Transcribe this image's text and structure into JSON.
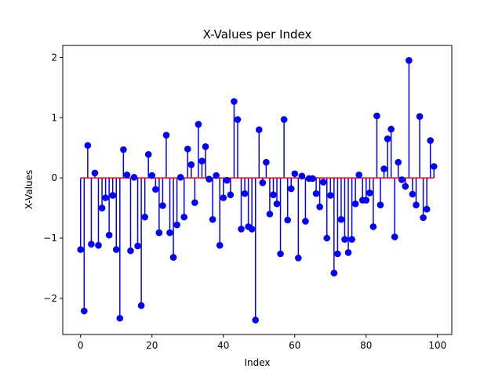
{
  "chart_data": {
    "type": "stem",
    "title": "X-Values per Index",
    "xlabel": "Index",
    "ylabel": "X-Values",
    "xlim": [
      -5,
      104
    ],
    "ylim": [
      -2.6,
      2.2
    ],
    "xticks": [
      0,
      20,
      40,
      60,
      80,
      100
    ],
    "xtick_labels": [
      "0",
      "20",
      "40",
      "60",
      "80",
      "100"
    ],
    "yticks": [
      -2,
      -1,
      0,
      1,
      2
    ],
    "ytick_labels": [
      "−2",
      "−1",
      "0",
      "1",
      "2"
    ],
    "grid": false,
    "baseline": 0,
    "colors": {
      "stem": "#0000ff",
      "marker": "#0000ff",
      "baseline": "#ff0000"
    },
    "x": [
      0,
      1,
      2,
      3,
      4,
      5,
      6,
      7,
      8,
      9,
      10,
      11,
      12,
      13,
      14,
      15,
      16,
      17,
      18,
      19,
      20,
      21,
      22,
      23,
      24,
      25,
      26,
      27,
      28,
      29,
      30,
      31,
      32,
      33,
      34,
      35,
      36,
      37,
      38,
      39,
      40,
      41,
      42,
      43,
      44,
      45,
      46,
      47,
      48,
      49,
      50,
      51,
      52,
      53,
      54,
      55,
      56,
      57,
      58,
      59,
      60,
      61,
      62,
      63,
      64,
      65,
      66,
      67,
      68,
      69,
      70,
      71,
      72,
      73,
      74,
      75,
      76,
      77,
      78,
      79,
      80,
      81,
      82,
      83,
      84,
      85,
      86,
      87,
      88,
      89,
      90,
      91,
      92,
      93,
      94,
      95,
      96,
      97,
      98,
      99
    ],
    "values": [
      -1.19,
      -2.21,
      0.54,
      -1.1,
      0.08,
      -1.12,
      -0.5,
      -0.33,
      -0.95,
      -0.29,
      -1.19,
      -2.33,
      0.47,
      0.05,
      -1.21,
      0.01,
      -1.13,
      -2.12,
      -0.65,
      0.39,
      0.04,
      -0.19,
      -0.91,
      -0.46,
      0.71,
      -0.91,
      -1.32,
      -0.78,
      0.01,
      -0.65,
      0.48,
      0.22,
      -0.41,
      0.89,
      0.28,
      0.52,
      -0.02,
      -0.69,
      0.04,
      -1.12,
      -0.33,
      -0.04,
      -0.28,
      1.27,
      0.97,
      -0.85,
      -0.26,
      -0.81,
      -0.85,
      -2.36,
      0.8,
      -0.08,
      0.26,
      -0.6,
      -0.28,
      -0.43,
      -1.26,
      0.97,
      -0.7,
      -0.18,
      0.07,
      -1.33,
      0.03,
      -0.72,
      -0.01,
      -0.01,
      -0.26,
      -0.48,
      -0.07,
      -1.0,
      -0.29,
      -1.58,
      -1.26,
      -0.69,
      -1.02,
      -1.24,
      -1.02,
      -0.43,
      0.05,
      -0.37,
      -0.37,
      -0.25,
      -0.81,
      1.03,
      -0.45,
      0.15,
      0.65,
      0.81,
      -0.98,
      0.26,
      -0.03,
      -0.14,
      1.95,
      -0.27,
      -0.45,
      1.02,
      -0.66,
      -0.52,
      0.62,
      0.19
    ]
  }
}
